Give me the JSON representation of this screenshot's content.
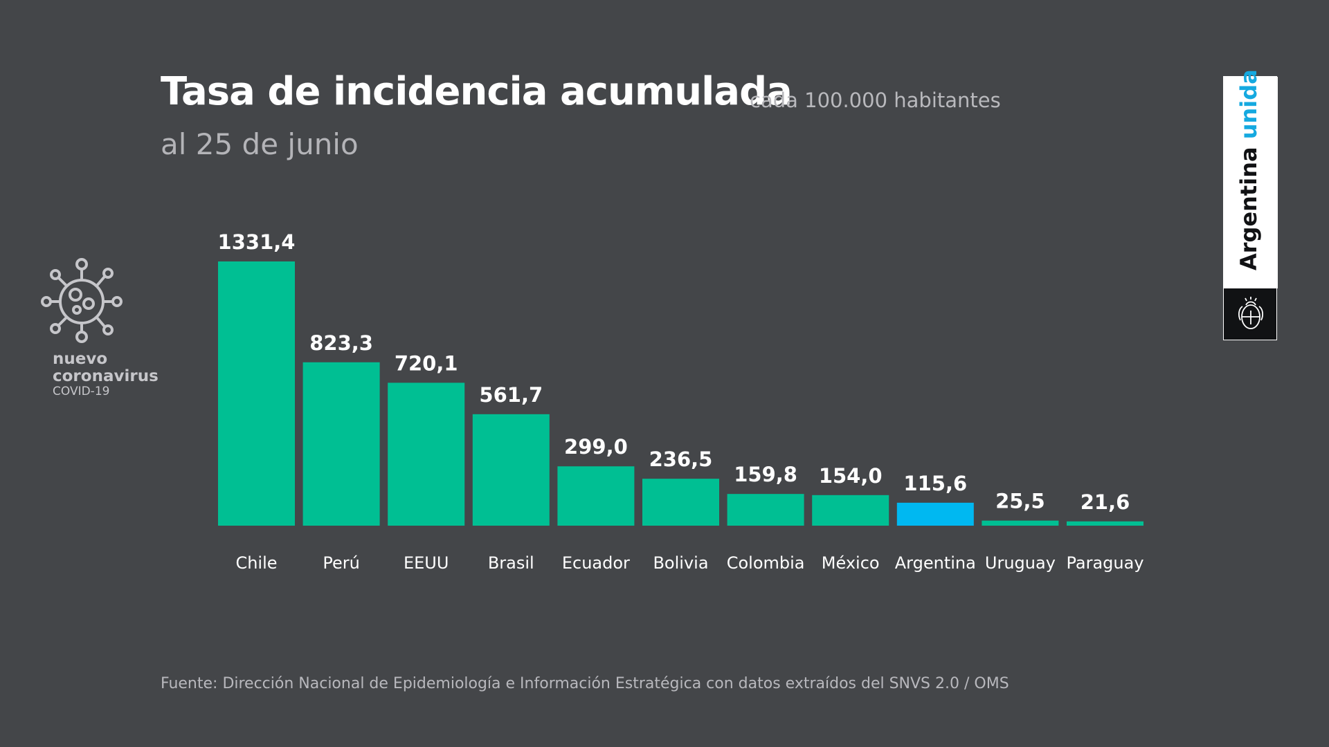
{
  "header": {
    "title": "Tasa de incidencia acumulada",
    "subtitle": "cada 100.000 habitantes",
    "date_line": "al 25 de junio"
  },
  "virus_badge": {
    "line1": "nuevo",
    "line2": "coronavirus",
    "line3": "COVID-19",
    "icon": "virus-icon"
  },
  "brand": {
    "text_part1": "Argentina",
    "text_part2": "unida",
    "icon": "argentina-coat-of-arms-icon"
  },
  "source": {
    "text": "Fuente: Dirección Nacional de Epidemiología e Información Estratégica con datos extraídos del SNVS 2.0 / OMS"
  },
  "colors": {
    "background": "#444649",
    "bar_default": "#00bf93",
    "bar_highlight": "#00b8f1",
    "text_primary": "#ffffff",
    "text_secondary": "#b9b9bd",
    "brand_blue": "#15a9e0"
  },
  "chart_data": {
    "type": "bar",
    "title": "Tasa de incidencia acumulada",
    "xlabel": "",
    "ylabel": "",
    "ylim": [
      0,
      1331.4
    ],
    "categories": [
      "Chile",
      "Perú",
      "EEUU",
      "Brasil",
      "Ecuador",
      "Bolivia",
      "Colombia",
      "México",
      "Argentina",
      "Uruguay",
      "Paraguay"
    ],
    "values": [
      1331.4,
      823.3,
      720.1,
      561.7,
      299.0,
      236.5,
      159.8,
      154.0,
      115.6,
      25.5,
      21.6
    ],
    "value_labels": [
      "1331,4",
      "823,3",
      "720,1",
      "561,7",
      "299,0",
      "236,5",
      "159,8",
      "154,0",
      "115,6",
      "25,5",
      "21,6"
    ],
    "highlight_category": "Argentina",
    "grid": false
  }
}
